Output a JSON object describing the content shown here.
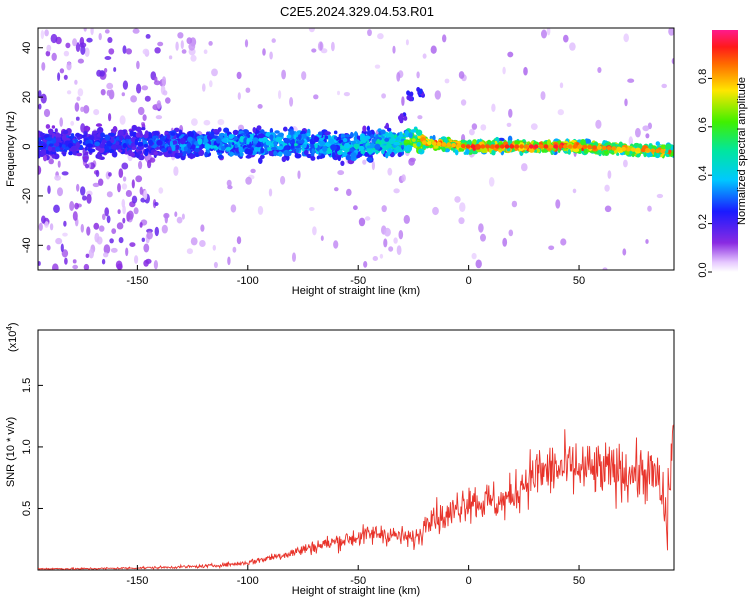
{
  "figure": {
    "title": "C2E5.2024.329.04.53.R01"
  },
  "chart_data": [
    {
      "type": "heatmap",
      "xlabel": "Height of straight line (km)",
      "ylabel": "Frequency (Hz)",
      "xlim": [
        -195,
        93
      ],
      "ylim": [
        -50,
        48
      ],
      "x_ticks": [
        -150,
        -100,
        -50,
        0,
        50
      ],
      "x_tick_labels": [
        "-150",
        "-100",
        "-50",
        "0",
        "50"
      ],
      "y_ticks": [
        -40,
        -20,
        0,
        20,
        40
      ],
      "y_tick_labels": [
        "-40",
        "-20",
        "0",
        "20",
        "40"
      ],
      "grid": false,
      "colorbar": {
        "label": "Normalized spectral amplitude",
        "range": [
          0,
          1
        ],
        "ticks": [
          0,
          0.2,
          0.4,
          0.6,
          0.8
        ],
        "tick_labels": [
          "0.0",
          "0.2",
          "0.4",
          "0.6",
          "0.8"
        ],
        "colormap": "rainbow (white-violet-blue-cyan-green-yellow-red-magenta)"
      },
      "description_points": {
        "ridge_center_frequency": [
          [
            -150,
            1.5
          ],
          [
            -100,
            1.0
          ],
          [
            -75,
            1.5
          ],
          [
            -50,
            0.0
          ],
          [
            -35,
            2.0
          ],
          [
            -25,
            2.0
          ],
          [
            0,
            0.0
          ],
          [
            50,
            0.0
          ],
          [
            90,
            -2.0
          ]
        ],
        "ridge_peak_amplitude": [
          [
            -150,
            0.3
          ],
          [
            -120,
            0.4
          ],
          [
            -80,
            0.45
          ],
          [
            -50,
            0.45
          ],
          [
            -30,
            0.55
          ],
          [
            -20,
            0.85
          ],
          [
            0,
            0.95
          ],
          [
            50,
            0.95
          ],
          [
            85,
            0.85
          ]
        ],
        "burst_feature": [
          [
            -30,
            12
          ],
          [
            -27,
            20
          ],
          [
            -22,
            22
          ]
        ]
      }
    },
    {
      "type": "line",
      "xlabel": "Height of straight line (km)",
      "ylabel": "SNR (10 * v/v)",
      "y_multiplier_label": "(x10",
      "y_multiplier_exponent": "4",
      "y_multiplier_close": ")",
      "xlim": [
        -195,
        93
      ],
      "ylim": [
        0,
        1.95
      ],
      "x_ticks": [
        -150,
        -100,
        -50,
        0,
        50
      ],
      "x_tick_labels": [
        "-150",
        "-100",
        "-50",
        "0",
        "50"
      ],
      "y_ticks": [
        0.5,
        1.0,
        1.5
      ],
      "y_tick_labels": [
        "0.5",
        "1.0",
        "1.5"
      ],
      "grid": false,
      "series": [
        {
          "color": "#e8332a",
          "x": [
            -195,
            -175,
            -155,
            -140,
            -120,
            -105,
            -100,
            -90,
            -80,
            -70,
            -60,
            -50,
            -40,
            -30,
            -25,
            -21,
            -18,
            -15,
            -12,
            -8,
            -5,
            0,
            5,
            10,
            15,
            20,
            25,
            30,
            40,
            50,
            60,
            70,
            80,
            85,
            88,
            90,
            92,
            93
          ],
          "values": [
            0.01,
            0.01,
            0.015,
            0.02,
            0.03,
            0.05,
            0.06,
            0.1,
            0.14,
            0.19,
            0.23,
            0.27,
            0.3,
            0.27,
            0.25,
            0.3,
            0.48,
            0.44,
            0.42,
            0.45,
            0.52,
            0.58,
            0.55,
            0.56,
            0.55,
            0.6,
            0.72,
            0.78,
            0.82,
            0.82,
            0.8,
            0.8,
            0.78,
            0.76,
            0.55,
            0.4,
            1.0,
            1.2
          ]
        }
      ]
    }
  ],
  "colors": {
    "line": "#e8332a",
    "axis": "#000000",
    "background": "#ffffff"
  }
}
